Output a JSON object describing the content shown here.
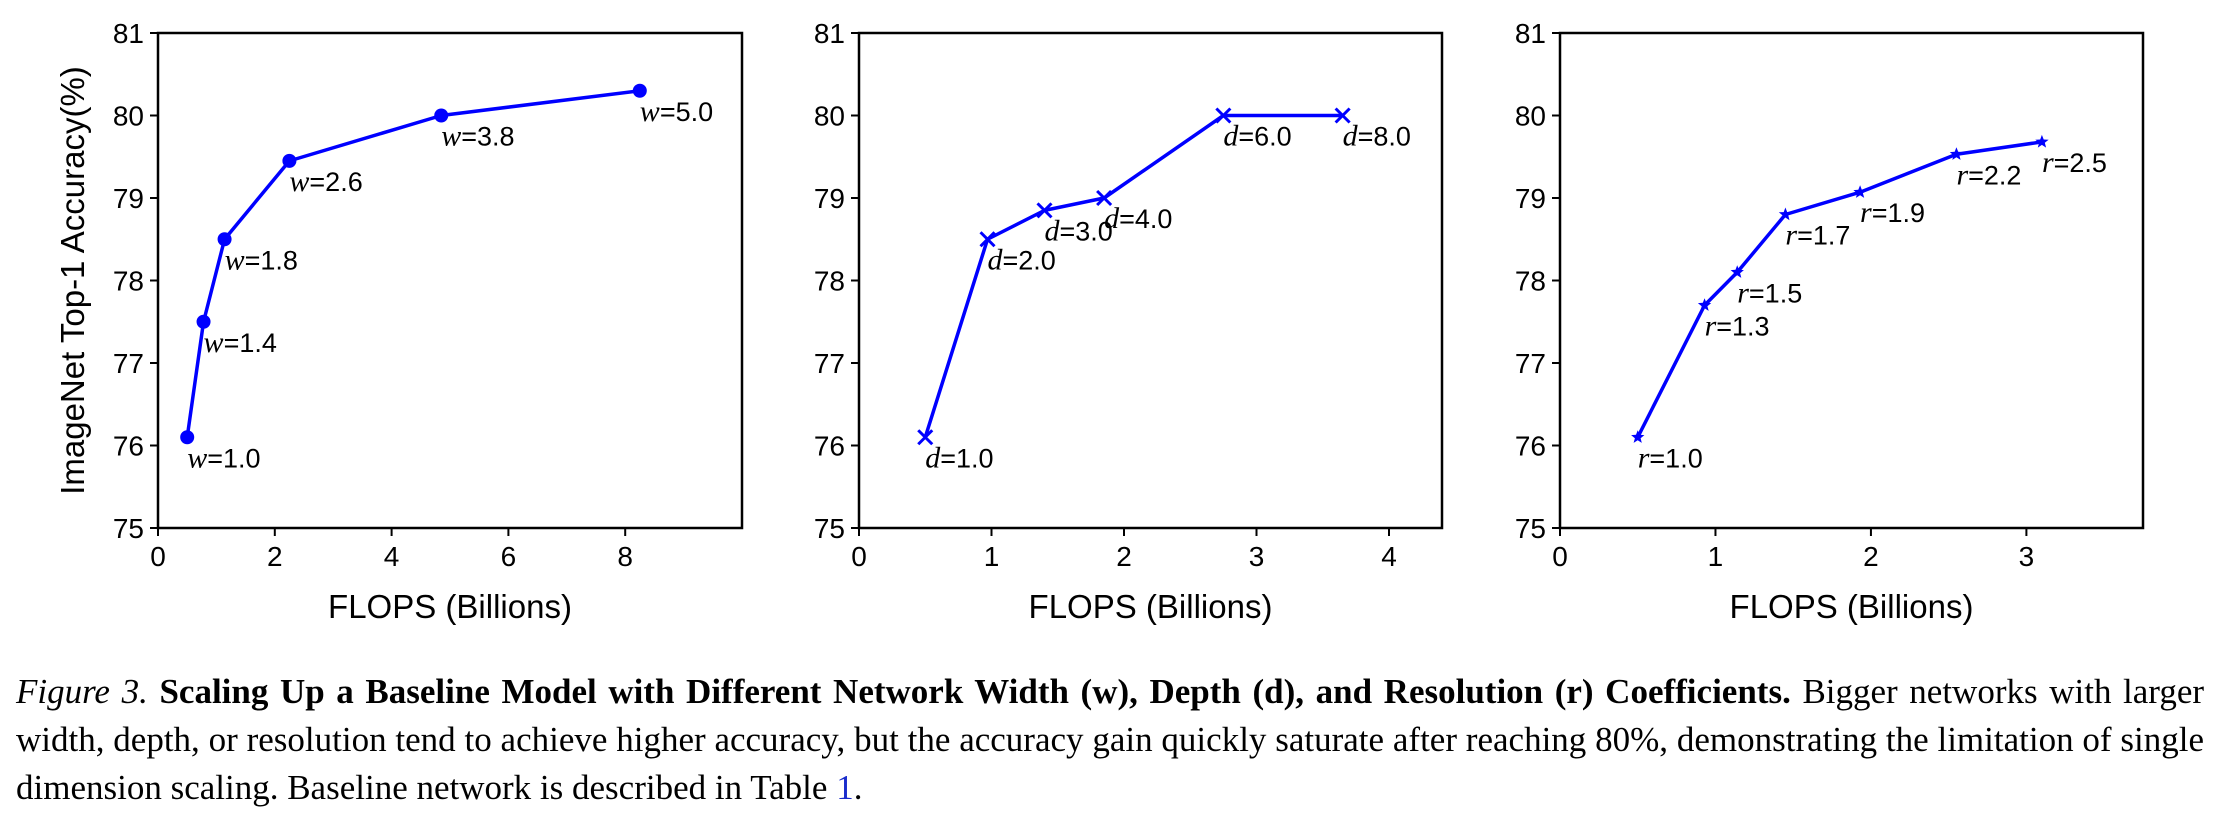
{
  "charts": [
    {
      "type": "line",
      "marker": "circle",
      "var": "w",
      "xlabel": "FLOPS (Billions)",
      "ylabel": "ImageNet Top-1 Accuracy(%)",
      "xlim": [
        0,
        10
      ],
      "ylim": [
        75,
        81
      ],
      "xticks": [
        0,
        2,
        4,
        6,
        8
      ],
      "yticks": [
        75,
        76,
        77,
        78,
        79,
        80,
        81
      ],
      "color": "#0000ff",
      "points": [
        {
          "x": 0.5,
          "y": 76.1,
          "label": "=1.0"
        },
        {
          "x": 0.78,
          "y": 77.5,
          "label": "=1.4"
        },
        {
          "x": 1.14,
          "y": 78.5,
          "label": "=1.8"
        },
        {
          "x": 2.25,
          "y": 79.45,
          "label": "=2.6"
        },
        {
          "x": 4.85,
          "y": 80.0,
          "label": "=3.8"
        },
        {
          "x": 8.25,
          "y": 80.3,
          "label": "=5.0"
        }
      ]
    },
    {
      "type": "line",
      "marker": "x",
      "var": "d",
      "xlabel": "FLOPS (Billions)",
      "ylabel": "",
      "xlim": [
        0,
        4.4
      ],
      "ylim": [
        75,
        81
      ],
      "xticks": [
        0,
        1,
        2,
        3,
        4
      ],
      "yticks": [
        75,
        76,
        77,
        78,
        79,
        80,
        81
      ],
      "color": "#0000ff",
      "points": [
        {
          "x": 0.5,
          "y": 76.1,
          "label": "=1.0"
        },
        {
          "x": 0.97,
          "y": 78.5,
          "label": "=2.0"
        },
        {
          "x": 1.4,
          "y": 78.85,
          "label": "=3.0"
        },
        {
          "x": 1.85,
          "y": 79.0,
          "label": "=4.0"
        },
        {
          "x": 2.75,
          "y": 80.0,
          "label": "=6.0"
        },
        {
          "x": 3.65,
          "y": 80.0,
          "label": "=8.0"
        }
      ]
    },
    {
      "type": "line",
      "marker": "star",
      "var": "r",
      "xlabel": "FLOPS (Billions)",
      "ylabel": "",
      "xlim": [
        0,
        3.75
      ],
      "ylim": [
        75,
        81
      ],
      "xticks": [
        0,
        1,
        2,
        3
      ],
      "yticks": [
        75,
        76,
        77,
        78,
        79,
        80,
        81
      ],
      "color": "#0000ff",
      "points": [
        {
          "x": 0.5,
          "y": 76.1,
          "label": "=1.0"
        },
        {
          "x": 0.93,
          "y": 77.7,
          "label": "=1.3"
        },
        {
          "x": 1.14,
          "y": 78.1,
          "label": "=1.5"
        },
        {
          "x": 1.45,
          "y": 78.8,
          "label": "=1.7"
        },
        {
          "x": 1.93,
          "y": 79.07,
          "label": "=1.9"
        },
        {
          "x": 2.55,
          "y": 79.53,
          "label": "=2.2"
        },
        {
          "x": 3.1,
          "y": 79.68,
          "label": "=2.5"
        }
      ]
    }
  ],
  "caption": {
    "fig_label": "Figure 3.",
    "bold_text": "Scaling Up a Baseline Model with Different Network Width (w), Depth (d), and Resolution (r) Coefficients.",
    "body_text": "Bigger networks with larger width, depth, or resolution tend to achieve higher accuracy, but the accuracy gain quickly saturate after reaching 80%, demonstrating the limitation of single dimension scaling. Baseline network is described in Table",
    "table_ref": "1",
    "end": "."
  }
}
